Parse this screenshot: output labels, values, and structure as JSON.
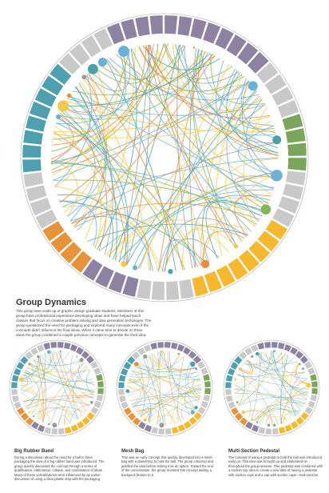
{
  "header": {
    "title": "Group Dynamics",
    "description": "This group was made up of graphic design graduate students. Members of this group have professional experience developing ideas and have helped teach classes that focus on creative problem solving and idea generation techniques. The group questioned the need for packaging and explored many concepts even if the concepts didn't influence the final ideas. When it came time to decide on three ideas the group combined a couple previous concepts to generate the third idea."
  },
  "concepts": [
    {
      "title": "Big Rubber Band",
      "description": "During a discussion about the need for a ball to have packaging the idea of a big rubber band was introduced. The group quickly discussed the concept through a series of qualification, elaboration, critique, and combination of ideas. Many of these verbalizations were influenced by an earlier discussion of using a clear plastic strip with the packaging."
    },
    {
      "title": "Mesh Bag",
      "description": "This was an early concept that quickly developed into a mesh bag with a drawstring to hold the ball. The group criticized and justified the idea before testing it as an option. Toward the end of the conversation, the group revisited this concept adding a backpack feature to it."
    },
    {
      "title": "Multi-Section Pedestal",
      "description": "The concept of using a pedestal to hold the ball was introduced early on. This idea was brought up and elaborated on throughout the group session. This pedestal was combined with a suction cup idea to create a new idea of having a pedestal with suction cups and a cap with suction cups—multi-section."
    }
  ]
}
